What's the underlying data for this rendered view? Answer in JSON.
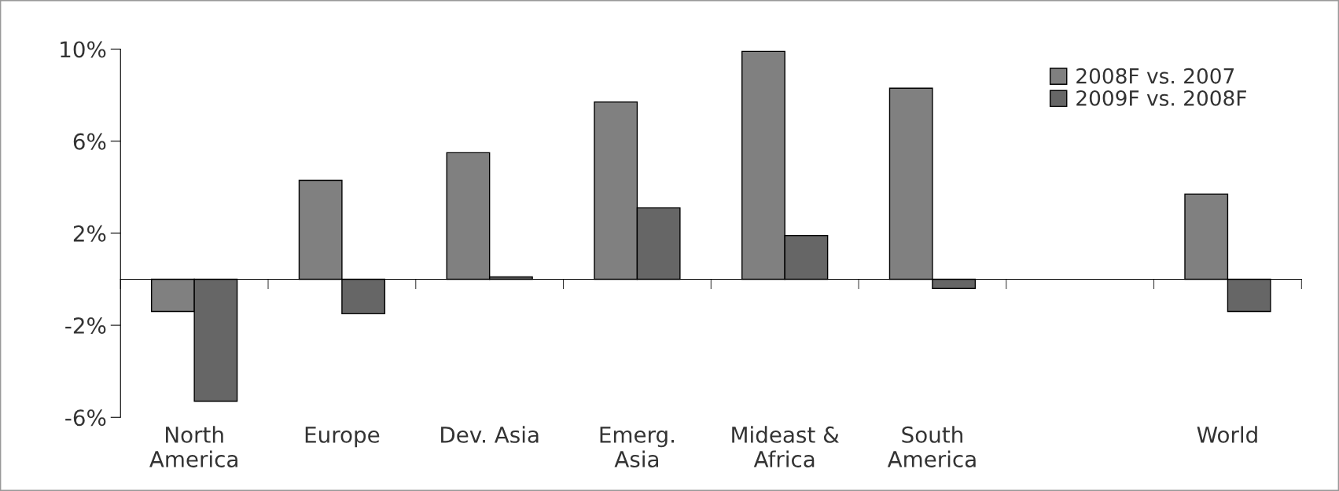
{
  "chart_data": {
    "type": "bar",
    "categories": [
      "North\nAmerica",
      "Europe",
      "Dev. Asia",
      "Emerg.\nAsia",
      "Mideast &\nAfrica",
      "South\nAmerica",
      null,
      "World"
    ],
    "series": [
      {
        "name": "2008F vs. 2007",
        "color": "#808080",
        "values": [
          -1.4,
          4.3,
          5.5,
          7.7,
          9.9,
          8.3,
          null,
          3.7
        ]
      },
      {
        "name": "2009F vs. 2008F",
        "color": "#666666",
        "values": [
          -5.3,
          -1.5,
          0.1,
          3.1,
          1.9,
          -0.4,
          null,
          -1.4
        ]
      }
    ],
    "ylim": [
      -6,
      10
    ],
    "yticks": [
      {
        "value": 10,
        "label": "10%"
      },
      {
        "value": 6,
        "label": "6%"
      },
      {
        "value": 2,
        "label": "2%"
      },
      {
        "value": -2,
        "label": "-2%"
      },
      {
        "value": -6,
        "label": "-6%"
      }
    ],
    "grid": false,
    "legend": "top right"
  }
}
